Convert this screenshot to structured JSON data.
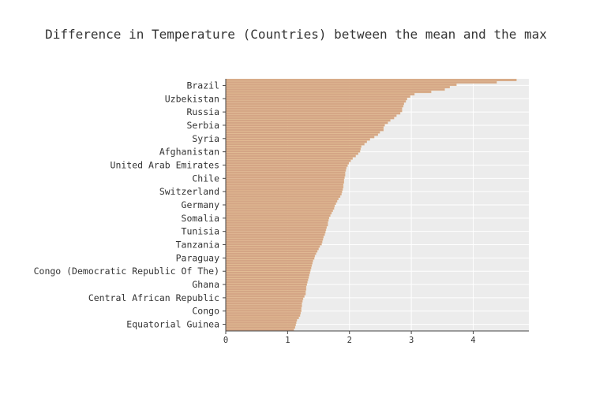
{
  "chart_data": {
    "type": "bar",
    "orientation": "horizontal",
    "title": "Difference in Temperature (Countries) between the mean and the max",
    "xlabel": "",
    "ylabel": "",
    "xlim": [
      0,
      4.9
    ],
    "xticks": [
      0,
      1,
      2,
      3,
      4
    ],
    "grid": true,
    "bar_color": "#d4a585",
    "bar_edge_color": "#e2b98c",
    "plot_background": "#ececec",
    "labeled_categories": [
      "Brazil",
      "Uzbekistan",
      "Russia",
      "Serbia",
      "Syria",
      "Afghanistan",
      "United Arab Emirates",
      "Chile",
      "Switzerland",
      "Germany",
      "Somalia",
      "Tunisia",
      "Tanzania",
      "Paraguay",
      "Congo (Democratic Republic Of The)",
      "Ghana",
      "Central African Republic",
      "Congo",
      "Equatorial Guinea"
    ],
    "values": [
      4.7,
      4.38,
      3.73,
      3.62,
      3.54,
      3.32,
      3.05,
      2.98,
      2.93,
      2.91,
      2.88,
      2.87,
      2.85,
      2.85,
      2.82,
      2.76,
      2.72,
      2.66,
      2.62,
      2.57,
      2.55,
      2.55,
      2.49,
      2.46,
      2.4,
      2.33,
      2.28,
      2.24,
      2.19,
      2.18,
      2.17,
      2.14,
      2.1,
      2.05,
      2.02,
      1.99,
      1.97,
      1.95,
      1.94,
      1.93,
      1.93,
      1.92,
      1.91,
      1.91,
      1.9,
      1.9,
      1.89,
      1.88,
      1.87,
      1.85,
      1.82,
      1.8,
      1.78,
      1.76,
      1.75,
      1.73,
      1.71,
      1.69,
      1.67,
      1.66,
      1.65,
      1.65,
      1.63,
      1.62,
      1.61,
      1.6,
      1.58,
      1.57,
      1.56,
      1.55,
      1.52,
      1.5,
      1.48,
      1.46,
      1.44,
      1.43,
      1.41,
      1.4,
      1.39,
      1.38,
      1.37,
      1.36,
      1.35,
      1.34,
      1.33,
      1.32,
      1.31,
      1.3,
      1.3,
      1.29,
      1.29,
      1.27,
      1.25,
      1.24,
      1.23,
      1.23,
      1.22,
      1.22,
      1.21,
      1.2,
      1.18,
      1.15,
      1.14,
      1.13,
      1.12,
      1.1
    ]
  }
}
